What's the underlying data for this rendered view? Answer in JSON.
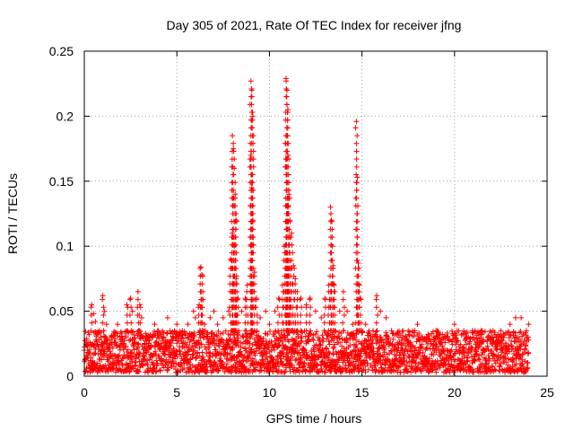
{
  "chart_data": {
    "type": "scatter",
    "title": "Day 305 of 2021, Rate Of TEC Index for receiver jfng",
    "xlabel": "GPS time / hours",
    "ylabel": "ROTI / TECUs",
    "xlim": [
      0,
      25
    ],
    "ylim": [
      0,
      0.25
    ],
    "xticks": [
      0,
      5,
      10,
      15,
      20,
      25
    ],
    "yticks": [
      0,
      0.05,
      0.1,
      0.15,
      0.2,
      0.25
    ],
    "xtick_labels": [
      "0",
      "5",
      "10",
      "15",
      "20",
      "25"
    ],
    "ytick_labels": [
      "0",
      "0.05",
      "0.1",
      "0.15",
      "0.2",
      "0.25"
    ],
    "grid": true,
    "marker": "+",
    "series": [
      {
        "name": "ROTI",
        "color": "#ff0000",
        "points": [
          [
            0.0,
            0.02
          ],
          [
            0.2,
            0.016
          ],
          [
            0.4,
            0.055
          ],
          [
            0.5,
            0.048
          ],
          [
            0.6,
            0.042
          ],
          [
            0.8,
            0.035
          ],
          [
            1.0,
            0.062
          ],
          [
            1.1,
            0.05
          ],
          [
            1.2,
            0.04
          ],
          [
            1.5,
            0.03
          ],
          [
            1.8,
            0.04
          ],
          [
            2.0,
            0.025
          ],
          [
            2.3,
            0.055
          ],
          [
            2.5,
            0.06
          ],
          [
            2.6,
            0.05
          ],
          [
            2.9,
            0.065
          ],
          [
            3.0,
            0.055
          ],
          [
            3.1,
            0.045
          ],
          [
            3.5,
            0.03
          ],
          [
            3.8,
            0.04
          ],
          [
            4.0,
            0.035
          ],
          [
            4.3,
            0.03
          ],
          [
            4.5,
            0.045
          ],
          [
            4.8,
            0.03
          ],
          [
            5.0,
            0.04
          ],
          [
            5.3,
            0.035
          ],
          [
            5.6,
            0.04
          ],
          [
            5.9,
            0.05
          ],
          [
            6.0,
            0.045
          ],
          [
            6.2,
            0.055
          ],
          [
            6.3,
            0.084
          ],
          [
            6.35,
            0.078
          ],
          [
            6.4,
            0.065
          ],
          [
            6.5,
            0.04
          ],
          [
            6.8,
            0.045
          ],
          [
            7.0,
            0.05
          ],
          [
            7.2,
            0.04
          ],
          [
            7.5,
            0.045
          ],
          [
            7.8,
            0.05
          ],
          [
            7.9,
            0.09
          ],
          [
            8.0,
            0.185
          ],
          [
            8.05,
            0.175
          ],
          [
            8.1,
            0.16
          ],
          [
            8.15,
            0.14
          ],
          [
            8.2,
            0.12
          ],
          [
            8.0,
            0.11
          ],
          [
            8.1,
            0.1
          ],
          [
            8.2,
            0.075
          ],
          [
            8.3,
            0.06
          ],
          [
            8.5,
            0.05
          ],
          [
            8.7,
            0.06
          ],
          [
            8.8,
            0.07
          ],
          [
            9.0,
            0.227
          ],
          [
            9.05,
            0.22
          ],
          [
            9.1,
            0.2
          ],
          [
            9.0,
            0.17
          ],
          [
            9.05,
            0.145
          ],
          [
            9.1,
            0.12
          ],
          [
            9.0,
            0.1
          ],
          [
            9.2,
            0.08
          ],
          [
            9.3,
            0.06
          ],
          [
            9.5,
            0.045
          ],
          [
            9.8,
            0.05
          ],
          [
            10.0,
            0.04
          ],
          [
            10.3,
            0.05
          ],
          [
            10.5,
            0.06
          ],
          [
            10.7,
            0.07
          ],
          [
            10.8,
            0.1
          ],
          [
            10.9,
            0.229
          ],
          [
            10.95,
            0.22
          ],
          [
            11.0,
            0.205
          ],
          [
            10.9,
            0.185
          ],
          [
            11.0,
            0.17
          ],
          [
            10.95,
            0.155
          ],
          [
            11.05,
            0.14
          ],
          [
            11.0,
            0.13
          ],
          [
            11.1,
            0.12
          ],
          [
            11.2,
            0.11
          ],
          [
            11.1,
            0.095
          ],
          [
            11.3,
            0.085
          ],
          [
            11.4,
            0.075
          ],
          [
            11.5,
            0.065
          ],
          [
            11.7,
            0.06
          ],
          [
            12.0,
            0.055
          ],
          [
            12.2,
            0.06
          ],
          [
            12.5,
            0.05
          ],
          [
            12.8,
            0.045
          ],
          [
            13.0,
            0.06
          ],
          [
            13.2,
            0.07
          ],
          [
            13.3,
            0.13
          ],
          [
            13.35,
            0.12
          ],
          [
            13.4,
            0.1
          ],
          [
            13.45,
            0.085
          ],
          [
            13.5,
            0.07
          ],
          [
            13.8,
            0.05
          ],
          [
            14.0,
            0.065
          ],
          [
            14.2,
            0.05
          ],
          [
            14.5,
            0.04
          ],
          [
            14.7,
            0.196
          ],
          [
            14.75,
            0.153
          ],
          [
            14.8,
            0.087
          ],
          [
            14.85,
            0.07
          ],
          [
            14.9,
            0.06
          ],
          [
            15.2,
            0.04
          ],
          [
            15.6,
            0.035
          ],
          [
            15.8,
            0.062
          ],
          [
            16.0,
            0.05
          ],
          [
            16.3,
            0.045
          ],
          [
            16.6,
            0.035
          ],
          [
            17.0,
            0.03
          ],
          [
            17.5,
            0.035
          ],
          [
            18.0,
            0.04
          ],
          [
            18.5,
            0.03
          ],
          [
            19.0,
            0.035
          ],
          [
            19.5,
            0.03
          ],
          [
            20.0,
            0.04
          ],
          [
            20.5,
            0.035
          ],
          [
            21.0,
            0.03
          ],
          [
            21.5,
            0.035
          ],
          [
            22.0,
            0.03
          ],
          [
            22.5,
            0.035
          ],
          [
            23.0,
            0.04
          ],
          [
            23.3,
            0.045
          ],
          [
            23.6,
            0.045
          ],
          [
            24.0,
            0.04
          ]
        ],
        "baseline_band": {
          "x_range": [
            0,
            24
          ],
          "y_range": [
            0.003,
            0.035
          ]
        }
      }
    ]
  }
}
